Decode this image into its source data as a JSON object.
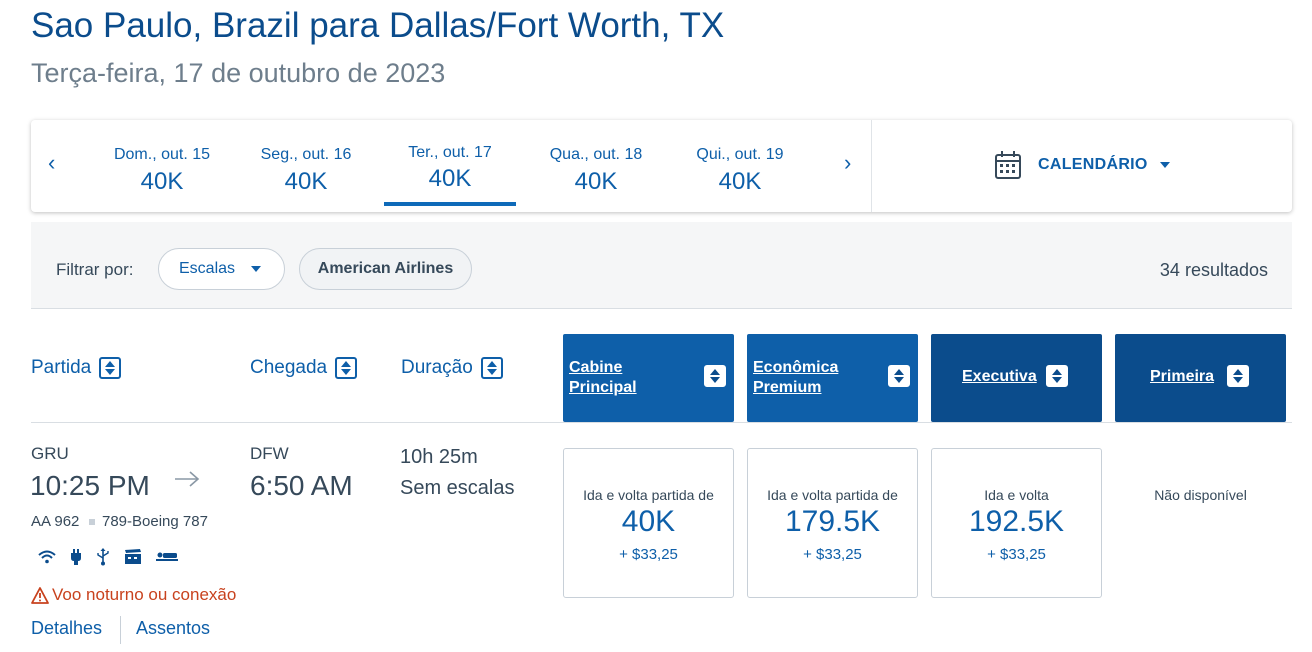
{
  "header": {
    "title": "Sao Paulo, Brazil para Dallas/Fort Worth, TX",
    "subtitle": "Terça-feira, 17 de outubro de 2023"
  },
  "date_nav": {
    "prev_icon": "‹",
    "next_icon": "›",
    "days": [
      {
        "label": "Dom., out. 15",
        "price": "40K"
      },
      {
        "label": "Seg., out. 16",
        "price": "40K"
      },
      {
        "label": "Ter., out. 17",
        "price": "40K",
        "selected": true
      },
      {
        "label": "Qua., out. 18",
        "price": "40K"
      },
      {
        "label": "Qui., out. 19",
        "price": "40K"
      }
    ],
    "calendar_label": "CALENDÁRIO",
    "calendar_icon": "calendar-icon"
  },
  "filters": {
    "label": "Filtrar por:",
    "stops_label": "Escalas",
    "airline_label": "American Airlines",
    "results": "34 resultados"
  },
  "columns": {
    "departure": "Partida",
    "arrival": "Chegada",
    "duration": "Duração",
    "cabins": [
      {
        "line1": "Cabine",
        "line2": "Principal",
        "color": "#0e5fa9"
      },
      {
        "line1": "Econômica",
        "line2": "Premium",
        "color": "#0e5fa9"
      },
      {
        "line1": "Executiva",
        "line2": "",
        "color": "#0b4c8c"
      },
      {
        "line1": "Primeira",
        "line2": "",
        "color": "#0b4c8c"
      }
    ]
  },
  "flight": {
    "origin": "GRU",
    "depart_time": "10:25 PM",
    "destination": "DFW",
    "arrive_time": "6:50 AM",
    "duration": "10h 25m",
    "stops": "Sem escalas",
    "flight_number": "AA 962",
    "aircraft": "789-Boeing 787",
    "amenities": [
      "wifi-icon",
      "power-plug-icon",
      "usb-icon",
      "entertainment-icon",
      "lie-flat-seat-icon"
    ],
    "warning": "Voo noturno ou conexão",
    "details_link": "Detalhes",
    "seats_link": "Assentos",
    "fares": [
      {
        "label": "Ida e volta partida de",
        "price": "40K",
        "tax": "+ $33,25"
      },
      {
        "label": "Ida e volta partida de",
        "price": "179.5K",
        "tax": "+ $33,25"
      },
      {
        "label": "Ida e volta",
        "price": "192.5K",
        "tax": "+ $33,25"
      }
    ],
    "first_unavailable": "Não disponível"
  },
  "colors": {
    "brand_blue": "#0e5fa9",
    "dark_blue": "#0b4c8c",
    "warning": "#c8421e"
  }
}
